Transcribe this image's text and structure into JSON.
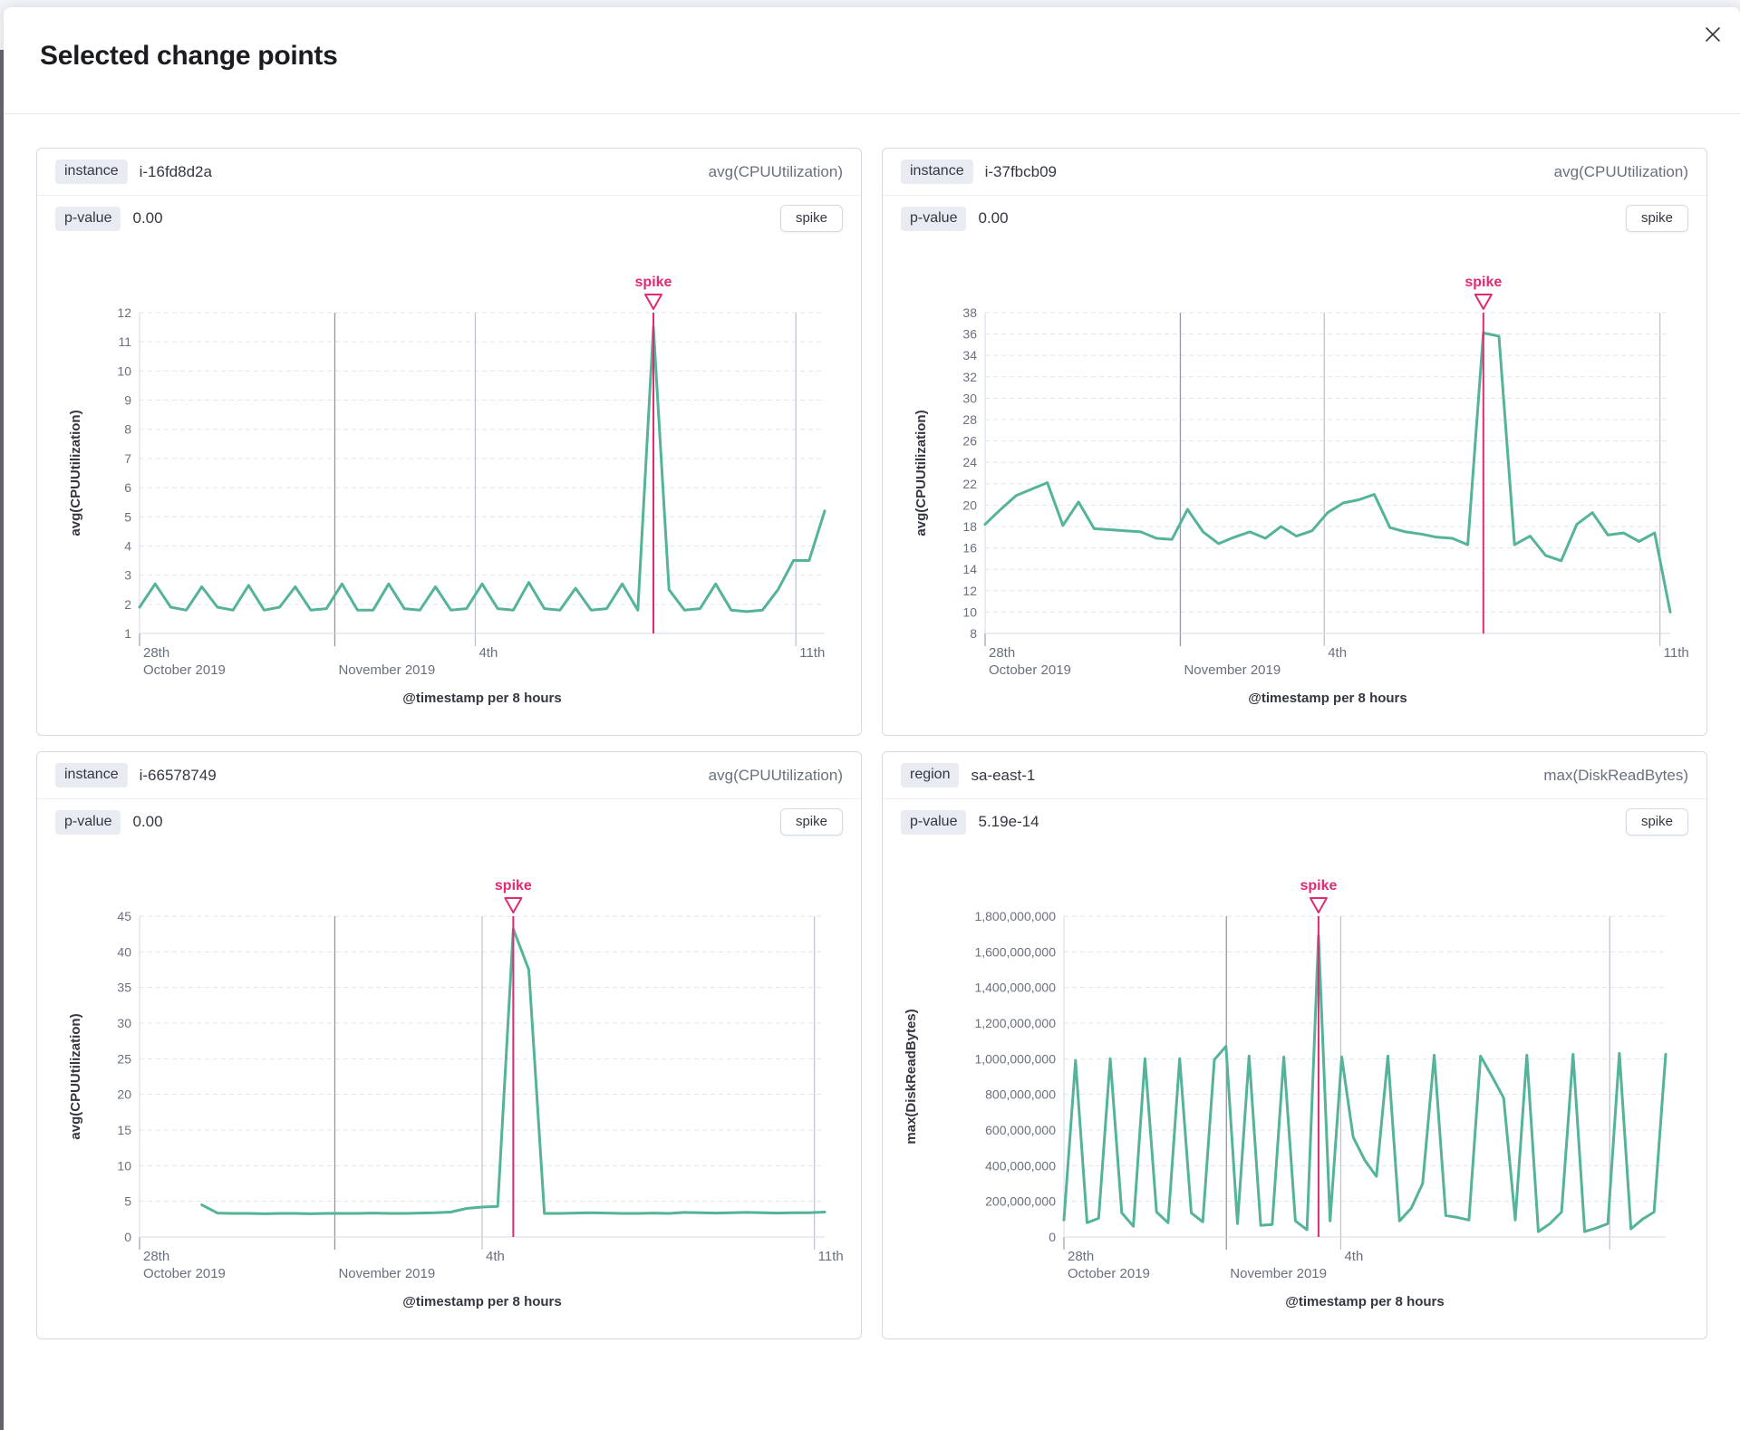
{
  "modal": {
    "title": "Selected change points"
  },
  "panels": [
    {
      "field_label": "instance",
      "field_value": "i-16fd8d2a",
      "metric": "avg(CPUUtilization)",
      "p_label": "p-value",
      "p_value": "0.00",
      "spike_label": "spike"
    },
    {
      "field_label": "instance",
      "field_value": "i-37fbcb09",
      "metric": "avg(CPUUtilization)",
      "p_label": "p-value",
      "p_value": "0.00",
      "spike_label": "spike"
    },
    {
      "field_label": "instance",
      "field_value": "i-66578749",
      "metric": "avg(CPUUtilization)",
      "p_label": "p-value",
      "p_value": "0.00",
      "spike_label": "spike"
    },
    {
      "field_label": "region",
      "field_value": "sa-east-1",
      "metric": "max(DiskReadBytes)",
      "p_label": "p-value",
      "p_value": "5.19e-14",
      "spike_label": "spike"
    }
  ],
  "colors": {
    "series": "#54b399",
    "annotation": "#e02a74",
    "grid_dashed": "#e1e5ec",
    "grid_dark": "#9298a3",
    "grid_light": "#bcc1cb",
    "axis": "#d3dae6",
    "tick_text": "#69707d",
    "label_text": "#343741",
    "tick_mark": "#98a0ad"
  },
  "chart_data": [
    {
      "type": "line",
      "ylabel": "avg(CPUUtilization)",
      "xlabel": "@timestamp per 8 hours",
      "annotation": "spike",
      "ylim": [
        1,
        12
      ],
      "yticks": [
        1,
        2,
        3,
        4,
        5,
        6,
        7,
        8,
        9,
        10,
        11,
        12
      ],
      "ytick_labels": [
        "1",
        "2",
        "3",
        "4",
        "5",
        "6",
        "7",
        "8",
        "9",
        "10",
        "11",
        "12"
      ],
      "xticks": [
        {
          "line1": "28th",
          "line2": "October 2019",
          "frac": 0.0,
          "grid": "none"
        },
        {
          "line1": "",
          "line2": "November 2019",
          "frac": 0.285,
          "grid": "dark"
        },
        {
          "line1": "4th",
          "line2": "",
          "frac": 0.49,
          "grid": "light"
        },
        {
          "line1": "11th",
          "line2": "",
          "frac": 0.958,
          "grid": "light"
        }
      ],
      "values": [
        1.9,
        2.7,
        1.9,
        1.8,
        2.6,
        1.9,
        1.8,
        2.65,
        1.8,
        1.9,
        2.6,
        1.8,
        1.85,
        2.7,
        1.8,
        1.8,
        2.7,
        1.85,
        1.8,
        2.6,
        1.8,
        1.85,
        2.7,
        1.85,
        1.8,
        2.75,
        1.85,
        1.8,
        2.55,
        1.8,
        1.85,
        2.7,
        1.8,
        11.5,
        2.5,
        1.8,
        1.85,
        2.7,
        1.8,
        1.75,
        1.8,
        2.5,
        3.5,
        3.5,
        5.2
      ],
      "spike_index": 33
    },
    {
      "type": "line",
      "ylabel": "avg(CPUUtilization)",
      "xlabel": "@timestamp per 8 hours",
      "annotation": "spike",
      "ylim": [
        8,
        38
      ],
      "yticks": [
        8,
        10,
        12,
        14,
        16,
        18,
        20,
        22,
        24,
        26,
        28,
        30,
        32,
        34,
        36,
        38
      ],
      "ytick_labels": [
        "8",
        "10",
        "12",
        "14",
        "16",
        "18",
        "20",
        "22",
        "24",
        "26",
        "28",
        "30",
        "32",
        "34",
        "36",
        "38"
      ],
      "xticks": [
        {
          "line1": "28th",
          "line2": "October 2019",
          "frac": 0.0,
          "grid": "none"
        },
        {
          "line1": "",
          "line2": "November 2019",
          "frac": 0.285,
          "grid": "dark"
        },
        {
          "line1": "4th",
          "line2": "",
          "frac": 0.495,
          "grid": "light"
        },
        {
          "line1": "11th",
          "line2": "",
          "frac": 0.985,
          "grid": "light"
        }
      ],
      "values": [
        18.2,
        19.6,
        20.9,
        21.5,
        22.1,
        18.1,
        20.3,
        17.8,
        17.7,
        17.6,
        17.5,
        16.9,
        16.8,
        19.6,
        17.5,
        16.4,
        17.0,
        17.5,
        16.9,
        18.0,
        17.1,
        17.6,
        19.3,
        20.2,
        20.5,
        21.0,
        17.9,
        17.5,
        17.3,
        17.0,
        16.9,
        16.3,
        36.1,
        35.8,
        16.3,
        17.1,
        15.3,
        14.8,
        18.2,
        19.3,
        17.2,
        17.4,
        16.6,
        17.4,
        10.0
      ],
      "spike_index": 32
    },
    {
      "type": "line",
      "ylabel": "avg(CPUUtilization)",
      "xlabel": "@timestamp per 8 hours",
      "annotation": "spike",
      "ylim": [
        0,
        45
      ],
      "yticks": [
        0,
        5,
        10,
        15,
        20,
        25,
        30,
        35,
        40,
        45
      ],
      "ytick_labels": [
        "0",
        "5",
        "10",
        "15",
        "20",
        "25",
        "30",
        "35",
        "40",
        "45"
      ],
      "xticks": [
        {
          "line1": "28th",
          "line2": "October 2019",
          "frac": 0.0,
          "grid": "none"
        },
        {
          "line1": "",
          "line2": "November 2019",
          "frac": 0.285,
          "grid": "dark"
        },
        {
          "line1": "4th",
          "line2": "",
          "frac": 0.5,
          "grid": "light"
        },
        {
          "line1": "11th",
          "line2": "",
          "frac": 0.985,
          "grid": "light"
        }
      ],
      "values": [
        null,
        null,
        null,
        null,
        4.5,
        3.35,
        3.3,
        3.3,
        3.25,
        3.3,
        3.3,
        3.25,
        3.3,
        3.3,
        3.3,
        3.35,
        3.3,
        3.3,
        3.35,
        3.4,
        3.5,
        4.0,
        4.2,
        4.3,
        43.2,
        37.5,
        3.3,
        3.3,
        3.35,
        3.4,
        3.35,
        3.3,
        3.3,
        3.35,
        3.3,
        3.45,
        3.4,
        3.35,
        3.4,
        3.45,
        3.4,
        3.35,
        3.4,
        3.4,
        3.5
      ],
      "spike_index": 24
    },
    {
      "type": "line",
      "ylabel": "max(DiskReadBytes)",
      "xlabel": "@timestamp per 8 hours",
      "annotation": "spike",
      "ylim": [
        0,
        1800000000
      ],
      "yticks": [
        0,
        200000000,
        400000000,
        600000000,
        800000000,
        1000000000,
        1200000000,
        1400000000,
        1600000000,
        1800000000
      ],
      "ytick_labels": [
        "0",
        "200,000,000",
        "400,000,000",
        "600,000,000",
        "800,000,000",
        "1,000,000,000",
        "1,200,000,000",
        "1,400,000,000",
        "1,600,000,000",
        "1,800,000,000"
      ],
      "xticks": [
        {
          "line1": "28th",
          "line2": "October 2019",
          "frac": 0.0,
          "grid": "none"
        },
        {
          "line1": "",
          "line2": "November 2019",
          "frac": 0.27,
          "grid": "dark"
        },
        {
          "line1": "4th",
          "line2": "",
          "frac": 0.46,
          "grid": "light"
        },
        {
          "line1": "",
          "line2": "",
          "frac": 0.907,
          "grid": "light"
        }
      ],
      "values": [
        95000000,
        990000000,
        80000000,
        105000000,
        1000000000,
        135000000,
        60000000,
        1000000000,
        140000000,
        80000000,
        1000000000,
        135000000,
        85000000,
        995000000,
        1070000000,
        75000000,
        1015000000,
        65000000,
        70000000,
        1010000000,
        90000000,
        40000000,
        1690000000,
        90000000,
        1010000000,
        560000000,
        430000000,
        340000000,
        1015000000,
        90000000,
        160000000,
        300000000,
        1020000000,
        120000000,
        110000000,
        95000000,
        1015000000,
        900000000,
        780000000,
        95000000,
        1020000000,
        30000000,
        75000000,
        140000000,
        1025000000,
        30000000,
        50000000,
        75000000,
        1030000000,
        45000000,
        100000000,
        140000000,
        1025000000
      ],
      "spike_index": 22
    }
  ]
}
